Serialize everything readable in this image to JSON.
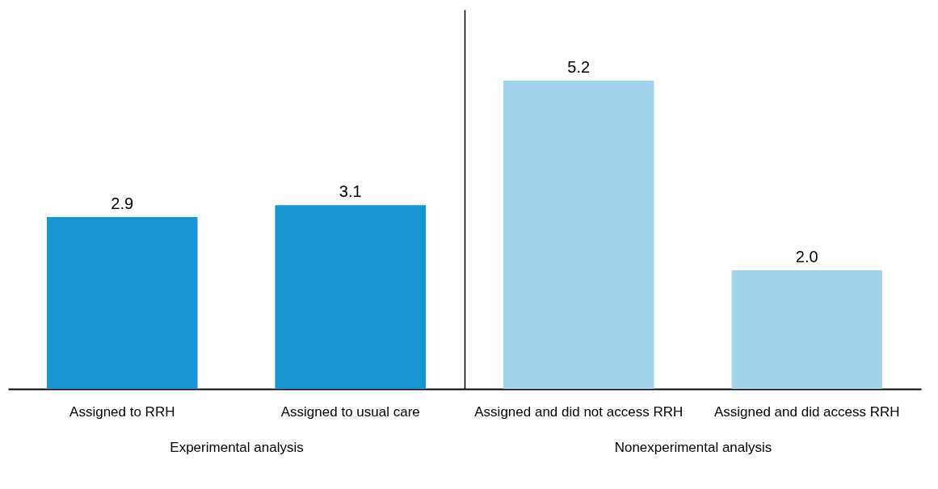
{
  "chart_data": [
    {
      "type": "bar",
      "categories": [
        "Assigned to RRH",
        "Assigned to usual care"
      ],
      "values": [
        2.9,
        3.1
      ],
      "colors": [
        "#1896d3",
        "#1896d3"
      ],
      "xlabel": "Experimental analysis",
      "value_labels": [
        "2.9",
        "3.1"
      ],
      "tick_labels": "x",
      "grid": false,
      "legend": false
    },
    {
      "type": "bar",
      "categories": [
        "Assigned and did not access RRH",
        "Assigned and did access RRH"
      ],
      "values": [
        5.2,
        2.0
      ],
      "colors": [
        "#a4d4ec",
        "#a4d4ec"
      ],
      "xlabel": "Nonexperimental analysis",
      "value_labels": [
        "5.2",
        "2.0"
      ],
      "tick_labels": "x",
      "grid": false,
      "legend": false
    }
  ]
}
